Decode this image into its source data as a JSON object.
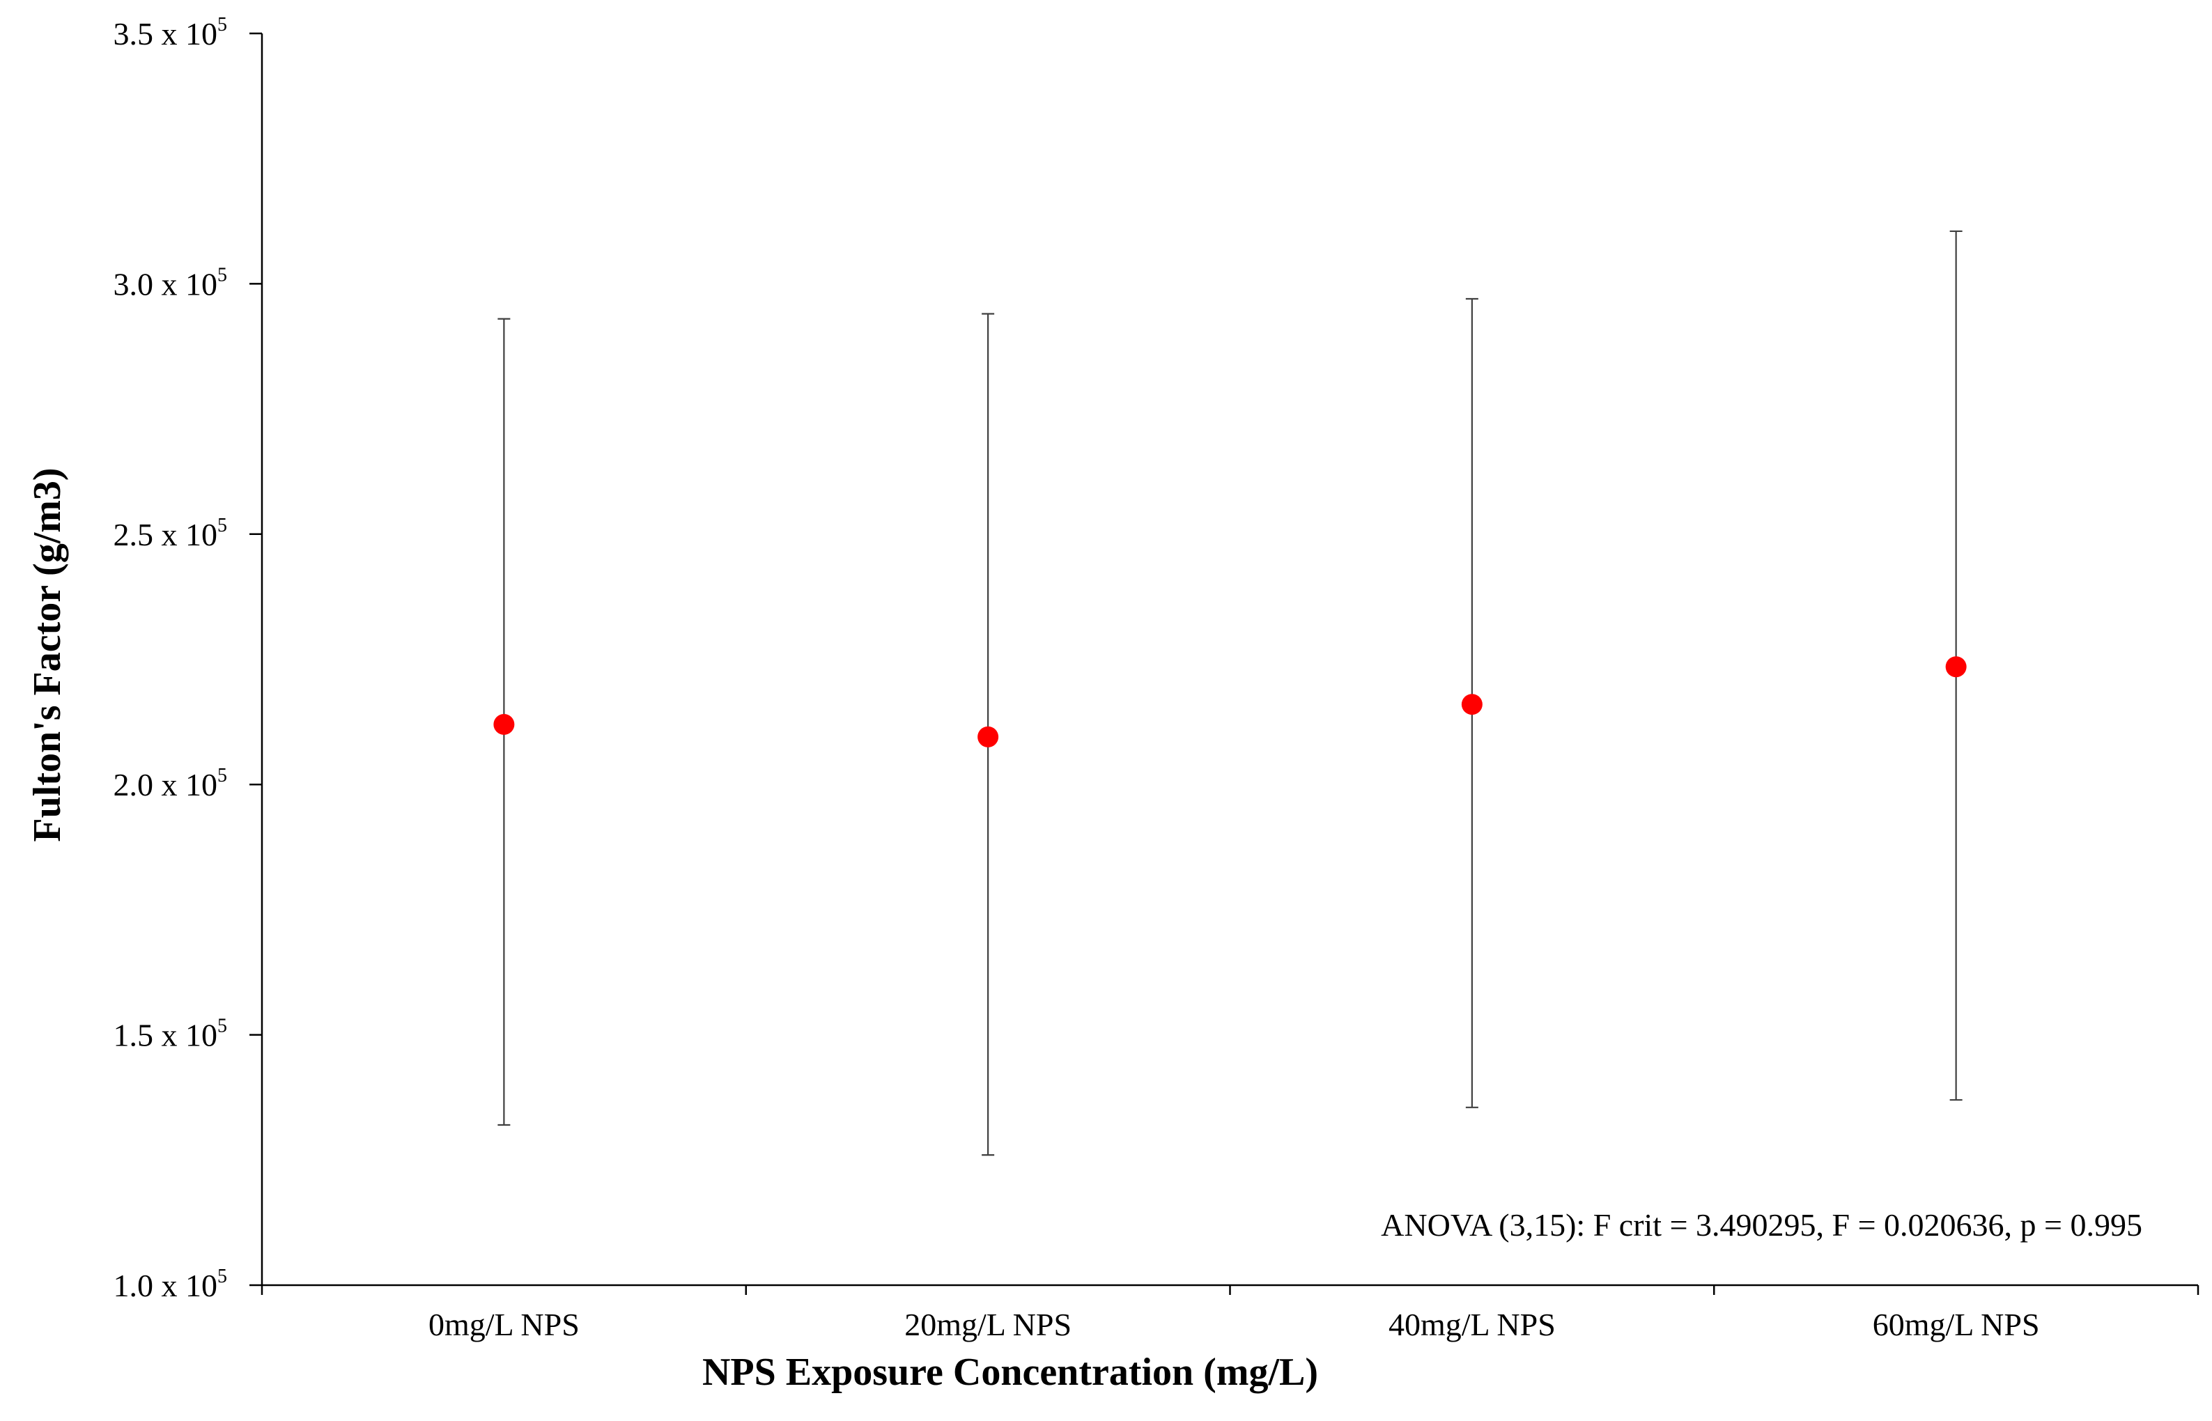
{
  "chart_data": {
    "type": "scatter",
    "xlabel": "NPS Exposure Concentration (mg/L)",
    "ylabel": "Fulton's Factor (g/m3)",
    "ylim": [
      100000,
      350000
    ],
    "yticks": [
      {
        "value": 100000,
        "mantissa": "1.0 x 10",
        "exp": "5"
      },
      {
        "value": 150000,
        "mantissa": "1.5 x 10",
        "exp": "5"
      },
      {
        "value": 200000,
        "mantissa": "2.0 x 10",
        "exp": "5"
      },
      {
        "value": 250000,
        "mantissa": "2.5 x 10",
        "exp": "5"
      },
      {
        "value": 300000,
        "mantissa": "3.0 x 10",
        "exp": "5"
      },
      {
        "value": 350000,
        "mantissa": "3.5 x 10",
        "exp": "5"
      }
    ],
    "categories": [
      "0mg/L NPS",
      "20mg/L NPS",
      "40mg/L NPS",
      "60mg/L NPS"
    ],
    "series": [
      {
        "values": [
          212000,
          209500,
          216000,
          223500
        ],
        "error_low": [
          132000,
          126000,
          135500,
          137000
        ],
        "error_high": [
          293000,
          294000,
          297000,
          310500
        ],
        "color": "#ff0000"
      }
    ],
    "grid": false,
    "legend": "none",
    "annotation": "ANOVA (3,15): F crit = 3.490295,  F = 0.020636,  p = 0.995"
  }
}
